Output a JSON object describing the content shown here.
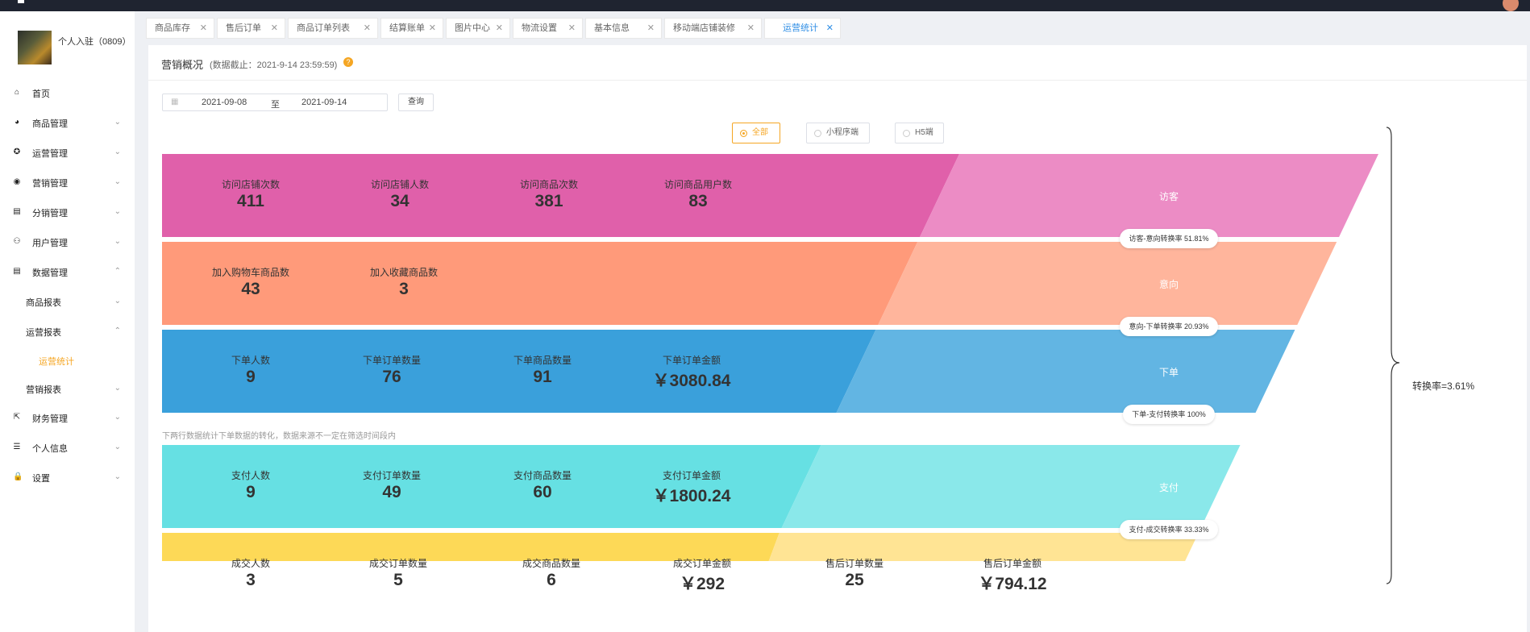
{
  "sidebar": {
    "shop_name": "个人入驻（0809）",
    "items": [
      {
        "label": "首页",
        "icon": "home-icon",
        "glyph": "⌂"
      },
      {
        "label": "商品管理",
        "icon": "dashboard-icon",
        "glyph": "◕"
      },
      {
        "label": "运营管理",
        "icon": "target-icon",
        "glyph": "✪"
      },
      {
        "label": "营销管理",
        "icon": "eye-icon",
        "glyph": "◉"
      },
      {
        "label": "分销管理",
        "icon": "document-icon",
        "glyph": "▤"
      },
      {
        "label": "用户管理",
        "icon": "users-icon",
        "glyph": "⚇"
      },
      {
        "label": "数据管理",
        "icon": "data-icon",
        "glyph": "▤"
      }
    ],
    "sub": {
      "product_report": "商品报表",
      "ops_report": "运营报表",
      "ops_stats": "运营统计",
      "marketing_report": "营销报表"
    },
    "bottom": [
      {
        "label": "财务管理",
        "icon": "external-link-icon",
        "glyph": "⇱"
      },
      {
        "label": "个人信息",
        "icon": "list-icon",
        "glyph": "☰"
      },
      {
        "label": "设置",
        "icon": "lock-icon",
        "glyph": "🔒"
      }
    ]
  },
  "tabs": [
    "商品库存",
    "售后订单",
    "商品订单列表",
    "结算账单",
    "图片中心",
    "物流设置",
    "基本信息",
    "移动端店铺装修",
    "运营统计"
  ],
  "panel": {
    "title": "营销概况",
    "note": "(数据截止：2021-9-14 23:59:59)",
    "help": "?"
  },
  "filter": {
    "start": "2021-09-08",
    "sep": "至",
    "end": "2021-09-14",
    "query": "查询",
    "radios": [
      "全部",
      "小程序端",
      "H5端"
    ],
    "selected": "全部"
  },
  "bands": [
    {
      "stage": "访客",
      "color": "#e060aa",
      "light": "#ec8cc5",
      "metrics": [
        {
          "label": "访问店铺次数",
          "value": "411"
        },
        {
          "label": "访问店铺人数",
          "value": "34"
        },
        {
          "label": "访问商品次数",
          "value": "381"
        },
        {
          "label": "访问商品用户数",
          "value": "83"
        }
      ]
    },
    {
      "stage": "意向",
      "color": "#ff9a7a",
      "light": "#ffb59c",
      "metrics": [
        {
          "label": "加入购物车商品数",
          "value": "43"
        },
        {
          "label": "加入收藏商品数",
          "value": "3"
        }
      ]
    },
    {
      "stage": "下单",
      "color": "#3aa0db",
      "light": "#62b5e3",
      "metrics": [
        {
          "label": "下单人数",
          "value": "9"
        },
        {
          "label": "下单订单数量",
          "value": "76"
        },
        {
          "label": "下单商品数量",
          "value": "91"
        },
        {
          "label": "下单订单金额",
          "value": "￥3080.84"
        }
      ]
    },
    {
      "stage": "支付",
      "color": "#66e0e3",
      "light": "#8ae8ea",
      "metrics": [
        {
          "label": "支付人数",
          "value": "9"
        },
        {
          "label": "支付订单数量",
          "value": "49"
        },
        {
          "label": "支付商品数量",
          "value": "60"
        },
        {
          "label": "支付订单金额",
          "value": "￥1800.24"
        }
      ]
    },
    {
      "stage": "成交",
      "color": "#fdd957",
      "light": "#ffe494",
      "metrics": [
        {
          "label": "成交人数",
          "value": "3"
        },
        {
          "label": "成交订单数量",
          "value": "5"
        },
        {
          "label": "成交商品数量",
          "value": "6"
        },
        {
          "label": "成交订单金额",
          "value": "￥292"
        },
        {
          "label": "售后订单数量",
          "value": "25"
        },
        {
          "label": "售后订单金额",
          "value": "￥794.12"
        }
      ]
    }
  ],
  "conversions": [
    "访客-意向转换率 51.81%",
    "意向-下单转换率 20.93%",
    "下单-支付转换率 100%",
    "支付-成交转换率 33.33%"
  ],
  "note": "下两行数据统计下单数据的转化，数据来源不一定在筛选时间段内",
  "total_rate": "转换率=3.61%"
}
